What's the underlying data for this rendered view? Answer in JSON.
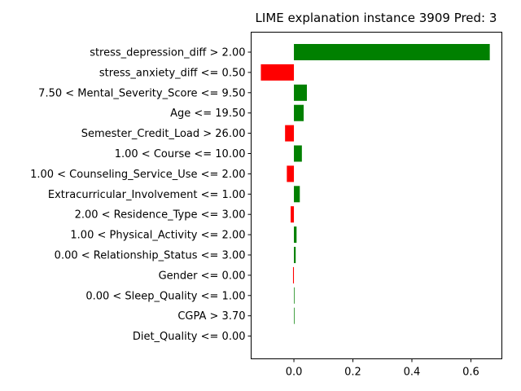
{
  "chart_data": {
    "type": "bar",
    "orientation": "horizontal",
    "title": "LIME explanation instance 3909 Pred: 3",
    "xlabel": "",
    "ylabel": "",
    "xlim": [
      -0.145,
      0.705
    ],
    "xticks": [
      0.0,
      0.2,
      0.4,
      0.6
    ],
    "xtick_labels": [
      "0.0",
      "0.2",
      "0.4",
      "0.6"
    ],
    "grid": false,
    "legend": "none",
    "colors": {
      "positive": "#008000",
      "negative": "#ff0000"
    },
    "categories": [
      "stress_depression_diff > 2.00",
      "stress_anxiety_diff <= 0.50",
      "7.50 < Mental_Severity_Score <= 9.50",
      "Age <= 19.50",
      "Semester_Credit_Load > 26.00",
      "1.00 < Course <= 10.00",
      "1.00 < Counseling_Service_Use <= 2.00",
      "Extracurricular_Involvement <= 1.00",
      "2.00 < Residence_Type <= 3.00",
      "1.00 < Physical_Activity <= 2.00",
      "0.00 < Relationship_Status <= 3.00",
      "Gender <= 0.00",
      "0.00 < Sleep_Quality <= 1.00",
      "CGPA > 3.70",
      "Diet_Quality <= 0.00"
    ],
    "values": [
      0.664,
      -0.112,
      0.044,
      0.033,
      -0.03,
      0.027,
      -0.024,
      0.02,
      -0.011,
      0.009,
      0.006,
      -0.003,
      0.002,
      0.002,
      0.0
    ]
  }
}
